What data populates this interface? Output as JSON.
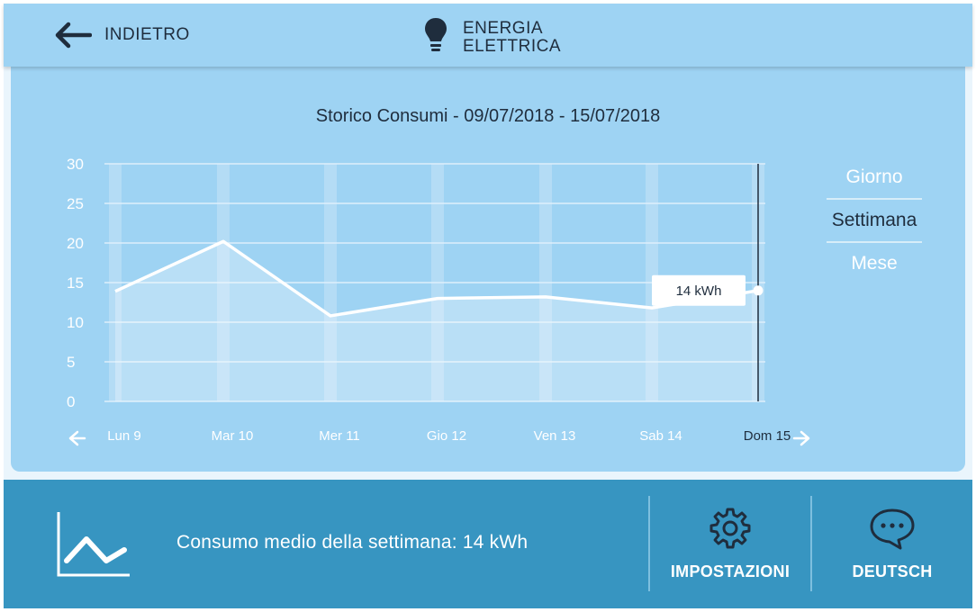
{
  "header": {
    "back_label": "INDIETRO",
    "title_line1": "ENERGIA",
    "title_line2": "ELETTRICA",
    "back_icon": "arrow-left-icon",
    "title_icon": "lightbulb-icon"
  },
  "main": {
    "chart_title": "Storico Consumi - 09/07/2018 - 15/07/2018",
    "tooltip": "14 kWh",
    "range_tabs": [
      "Giorno",
      "Settimana",
      "Mese"
    ],
    "active_tab": "Settimana"
  },
  "chart_data": {
    "type": "area",
    "title": "Storico Consumi - 09/07/2018 - 15/07/2018",
    "xlabel": "",
    "ylabel": "",
    "categories": [
      "Lun 9",
      "Mar 10",
      "Mer 11",
      "Gio 12",
      "Ven 13",
      "Sab 14",
      "Dom 15"
    ],
    "values": [
      13.9,
      20.2,
      10.8,
      13.0,
      13.2,
      11.8,
      14.0
    ],
    "ylim": [
      0,
      30
    ],
    "yticks": [
      "0",
      "5",
      "10",
      "15",
      "20",
      "25",
      "30"
    ],
    "highlighted_category": "Dom 15",
    "grid": true
  },
  "footer": {
    "average_text": "Consumo medio della settimana: 14 kWh",
    "settings_label": "IMPOSTAZIONI",
    "language_label": "DEUTSCH",
    "chart_icon": "line-chart-icon",
    "settings_icon": "gear-icon",
    "language_icon": "chat-bubble-icon"
  },
  "colors": {
    "header_bg": "#9ed3f3",
    "card_bg": "#9ed3f3",
    "footer_bg": "#3795c1",
    "text_dark": "#1f2d3d",
    "line": "#ffffff"
  }
}
